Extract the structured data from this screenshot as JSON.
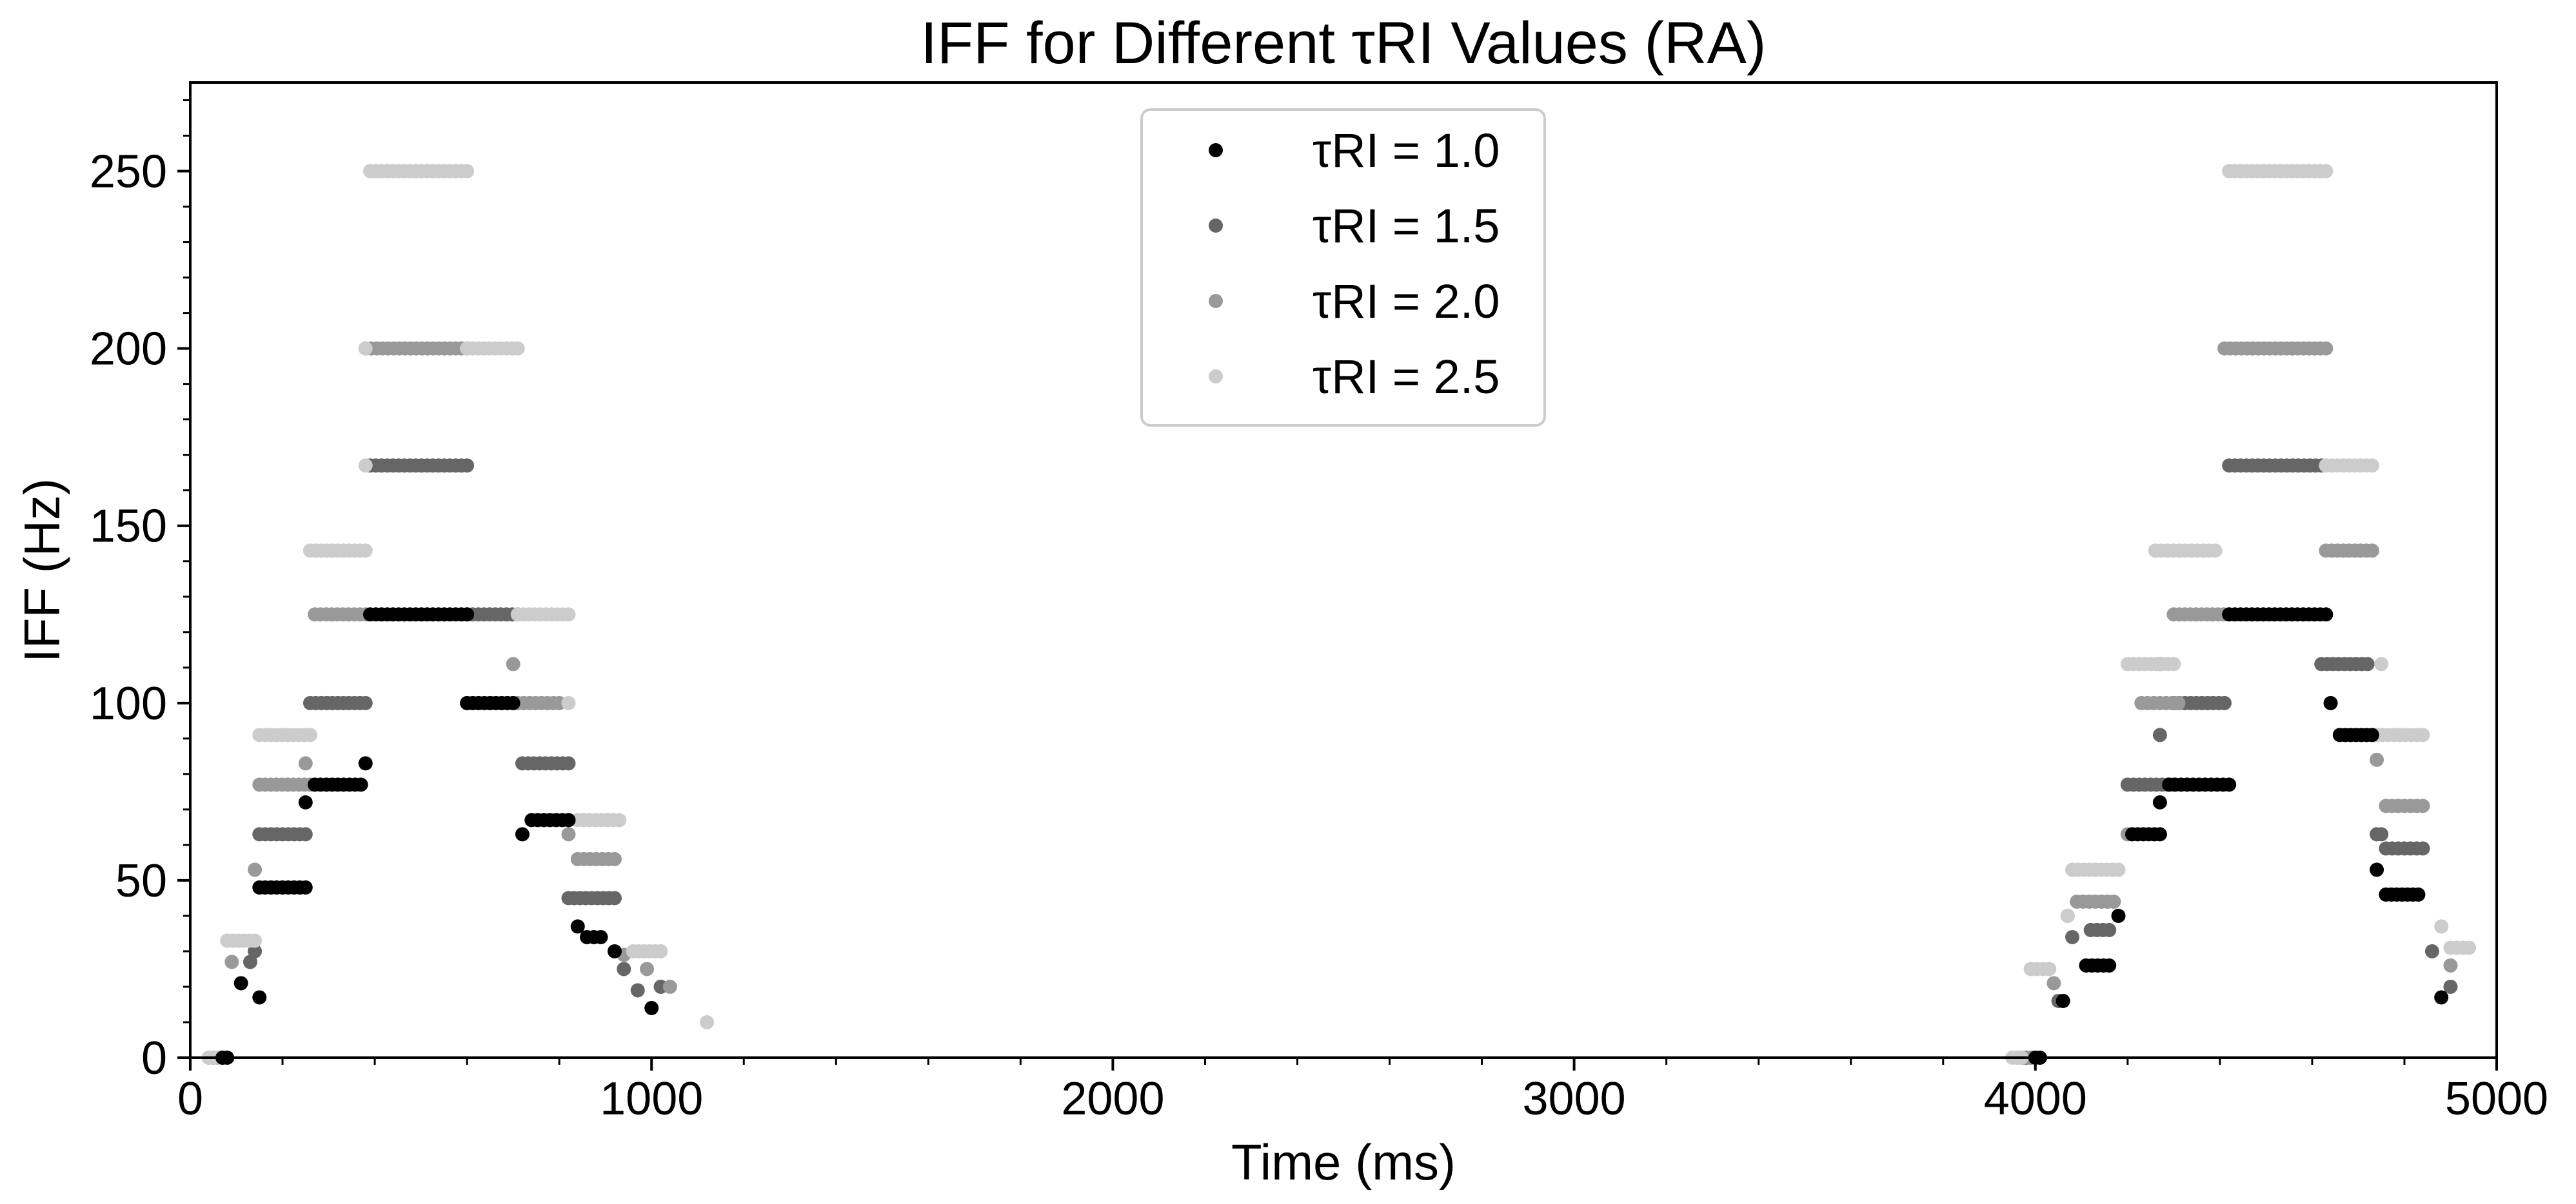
{
  "chart_data": {
    "type": "scatter",
    "title": "IFF for Different τRI Values (RA)",
    "xlabel": "Time (ms)",
    "ylabel": "IFF (Hz)",
    "xlim": [
      0,
      5000
    ],
    "ylim": [
      0,
      275
    ],
    "xticks": [
      0,
      1000,
      2000,
      3000,
      4000,
      5000
    ],
    "yticks": [
      0,
      50,
      100,
      150,
      200,
      250
    ],
    "grid": false,
    "legend_position": "top-center",
    "series": [
      {
        "name": "τRI = 1.0",
        "color": "#000000",
        "segments": [
          {
            "x": [
              70,
              80
            ],
            "y": 0
          },
          {
            "x": [
              150,
              150
            ],
            "y": 17
          },
          {
            "x": [
              110,
              110
            ],
            "y": 21
          },
          {
            "x": [
              150,
              250
            ],
            "y": 48
          },
          {
            "x": [
              250,
              250
            ],
            "y": 72
          },
          {
            "x": [
              270,
              370
            ],
            "y": 77
          },
          {
            "x": [
              380,
              380
            ],
            "y": 83
          },
          {
            "x": [
              390,
              600
            ],
            "y": 125
          },
          {
            "x": [
              600,
              700
            ],
            "y": 100
          },
          {
            "x": [
              720,
              720
            ],
            "y": 63
          },
          {
            "x": [
              740,
              820
            ],
            "y": 67
          },
          {
            "x": [
              840,
              840
            ],
            "y": 37
          },
          {
            "x": [
              860,
              890
            ],
            "y": 34
          },
          {
            "x": [
              920,
              920
            ],
            "y": 30
          },
          {
            "x": [
              1000,
              1000
            ],
            "y": 14
          },
          {
            "x": [
              4000,
              4010
            ],
            "y": 0
          },
          {
            "x": [
              4060,
              4060
            ],
            "y": 16
          },
          {
            "x": [
              4110,
              4160
            ],
            "y": 26
          },
          {
            "x": [
              4180,
              4180
            ],
            "y": 40
          },
          {
            "x": [
              4270,
              4270
            ],
            "y": 72
          },
          {
            "x": [
              4210,
              4270
            ],
            "y": 63
          },
          {
            "x": [
              4290,
              4420
            ],
            "y": 77
          },
          {
            "x": [
              4420,
              4630
            ],
            "y": 125
          },
          {
            "x": [
              4640,
              4640
            ],
            "y": 100
          },
          {
            "x": [
              4660,
              4730
            ],
            "y": 91
          },
          {
            "x": [
              4740,
              4740
            ],
            "y": 53
          },
          {
            "x": [
              4760,
              4830
            ],
            "y": 46
          },
          {
            "x": [
              4880,
              4880
            ],
            "y": 17
          }
        ]
      },
      {
        "name": "τRI = 1.5",
        "color": "#666666",
        "segments": [
          {
            "x": [
              50,
              70
            ],
            "y": 0
          },
          {
            "x": [
              140,
              140
            ],
            "y": 30
          },
          {
            "x": [
              130,
              130
            ],
            "y": 27
          },
          {
            "x": [
              150,
              250
            ],
            "y": 63
          },
          {
            "x": [
              260,
              380
            ],
            "y": 100
          },
          {
            "x": [
              390,
              600
            ],
            "y": 167
          },
          {
            "x": [
              600,
              710
            ],
            "y": 125
          },
          {
            "x": [
              720,
              820
            ],
            "y": 83
          },
          {
            "x": [
              820,
              920
            ],
            "y": 45
          },
          {
            "x": [
              940,
              940
            ],
            "y": 25
          },
          {
            "x": [
              970,
              970
            ],
            "y": 19
          },
          {
            "x": [
              1020,
              1020
            ],
            "y": 20
          },
          {
            "x": [
              3970,
              3990
            ],
            "y": 0
          },
          {
            "x": [
              4050,
              4050
            ],
            "y": 16
          },
          {
            "x": [
              4080,
              4080
            ],
            "y": 34
          },
          {
            "x": [
              4120,
              4160
            ],
            "y": 36
          },
          {
            "x": [
              4200,
              4300
            ],
            "y": 77
          },
          {
            "x": [
              4270,
              4270
            ],
            "y": 91
          },
          {
            "x": [
              4300,
              4410
            ],
            "y": 100
          },
          {
            "x": [
              4420,
              4620
            ],
            "y": 167
          },
          {
            "x": [
              4620,
              4720
            ],
            "y": 111
          },
          {
            "x": [
              4740,
              4750
            ],
            "y": 63
          },
          {
            "x": [
              4760,
              4840
            ],
            "y": 59
          },
          {
            "x": [
              4860,
              4860
            ],
            "y": 30
          },
          {
            "x": [
              4900,
              4900
            ],
            "y": 20
          }
        ]
      },
      {
        "name": "τRI = 2.0",
        "color": "#999999",
        "segments": [
          {
            "x": [
              40,
              60
            ],
            "y": 0
          },
          {
            "x": [
              90,
              90
            ],
            "y": 27
          },
          {
            "x": [
              140,
              140
            ],
            "y": 53
          },
          {
            "x": [
              150,
              260
            ],
            "y": 77
          },
          {
            "x": [
              250,
              250
            ],
            "y": 83
          },
          {
            "x": [
              270,
              380
            ],
            "y": 125
          },
          {
            "x": [
              380,
              600
            ],
            "y": 200
          },
          {
            "x": [
              700,
              700
            ],
            "y": 111
          },
          {
            "x": [
              710,
              800
            ],
            "y": 100
          },
          {
            "x": [
              820,
              820
            ],
            "y": 63
          },
          {
            "x": [
              840,
              920
            ],
            "y": 56
          },
          {
            "x": [
              940,
              940
            ],
            "y": 29
          },
          {
            "x": [
              990,
              990
            ],
            "y": 25
          },
          {
            "x": [
              1040,
              1040
            ],
            "y": 20
          },
          {
            "x": [
              3960,
              3990
            ],
            "y": 0
          },
          {
            "x": [
              4040,
              4040
            ],
            "y": 21
          },
          {
            "x": [
              4070,
              4070
            ],
            "y": 40
          },
          {
            "x": [
              4090,
              4170
            ],
            "y": 44
          },
          {
            "x": [
              4200,
              4200
            ],
            "y": 63
          },
          {
            "x": [
              4230,
              4310
            ],
            "y": 100
          },
          {
            "x": [
              4270,
              4270
            ],
            "y": 111
          },
          {
            "x": [
              4300,
              4420
            ],
            "y": 125
          },
          {
            "x": [
              4410,
              4630
            ],
            "y": 200
          },
          {
            "x": [
              4630,
              4730
            ],
            "y": 143
          },
          {
            "x": [
              4740,
              4740
            ],
            "y": 84
          },
          {
            "x": [
              4760,
              4840
            ],
            "y": 71
          },
          {
            "x": [
              4900,
              4900
            ],
            "y": 26
          }
        ]
      },
      {
        "name": "τRI = 2.5",
        "color": "#cccccc",
        "segments": [
          {
            "x": [
              40,
              60
            ],
            "y": 0
          },
          {
            "x": [
              80,
              140
            ],
            "y": 33
          },
          {
            "x": [
              150,
              260
            ],
            "y": 91
          },
          {
            "x": [
              260,
              380
            ],
            "y": 143
          },
          {
            "x": [
              380,
              380
            ],
            "y": 167
          },
          {
            "x": [
              380,
              380
            ],
            "y": 200
          },
          {
            "x": [
              390,
              600
            ],
            "y": 250
          },
          {
            "x": [
              600,
              710
            ],
            "y": 200
          },
          {
            "x": [
              710,
              820
            ],
            "y": 125
          },
          {
            "x": [
              820,
              820
            ],
            "y": 100
          },
          {
            "x": [
              840,
              930
            ],
            "y": 67
          },
          {
            "x": [
              960,
              1020
            ],
            "y": 30
          },
          {
            "x": [
              1120,
              1120
            ],
            "y": 10
          },
          {
            "x": [
              3950,
              3970
            ],
            "y": 0
          },
          {
            "x": [
              3990,
              4030
            ],
            "y": 25
          },
          {
            "x": [
              4080,
              4180
            ],
            "y": 53
          },
          {
            "x": [
              4070,
              4070
            ],
            "y": 40
          },
          {
            "x": [
              4200,
              4300
            ],
            "y": 111
          },
          {
            "x": [
              4260,
              4390
            ],
            "y": 143
          },
          {
            "x": [
              4420,
              4630
            ],
            "y": 250
          },
          {
            "x": [
              4630,
              4730
            ],
            "y": 167
          },
          {
            "x": [
              4740,
              4840
            ],
            "y": 91
          },
          {
            "x": [
              4750,
              4750
            ],
            "y": 111
          },
          {
            "x": [
              4880,
              4880
            ],
            "y": 37
          },
          {
            "x": [
              4900,
              4940
            ],
            "y": 31
          }
        ]
      }
    ]
  }
}
